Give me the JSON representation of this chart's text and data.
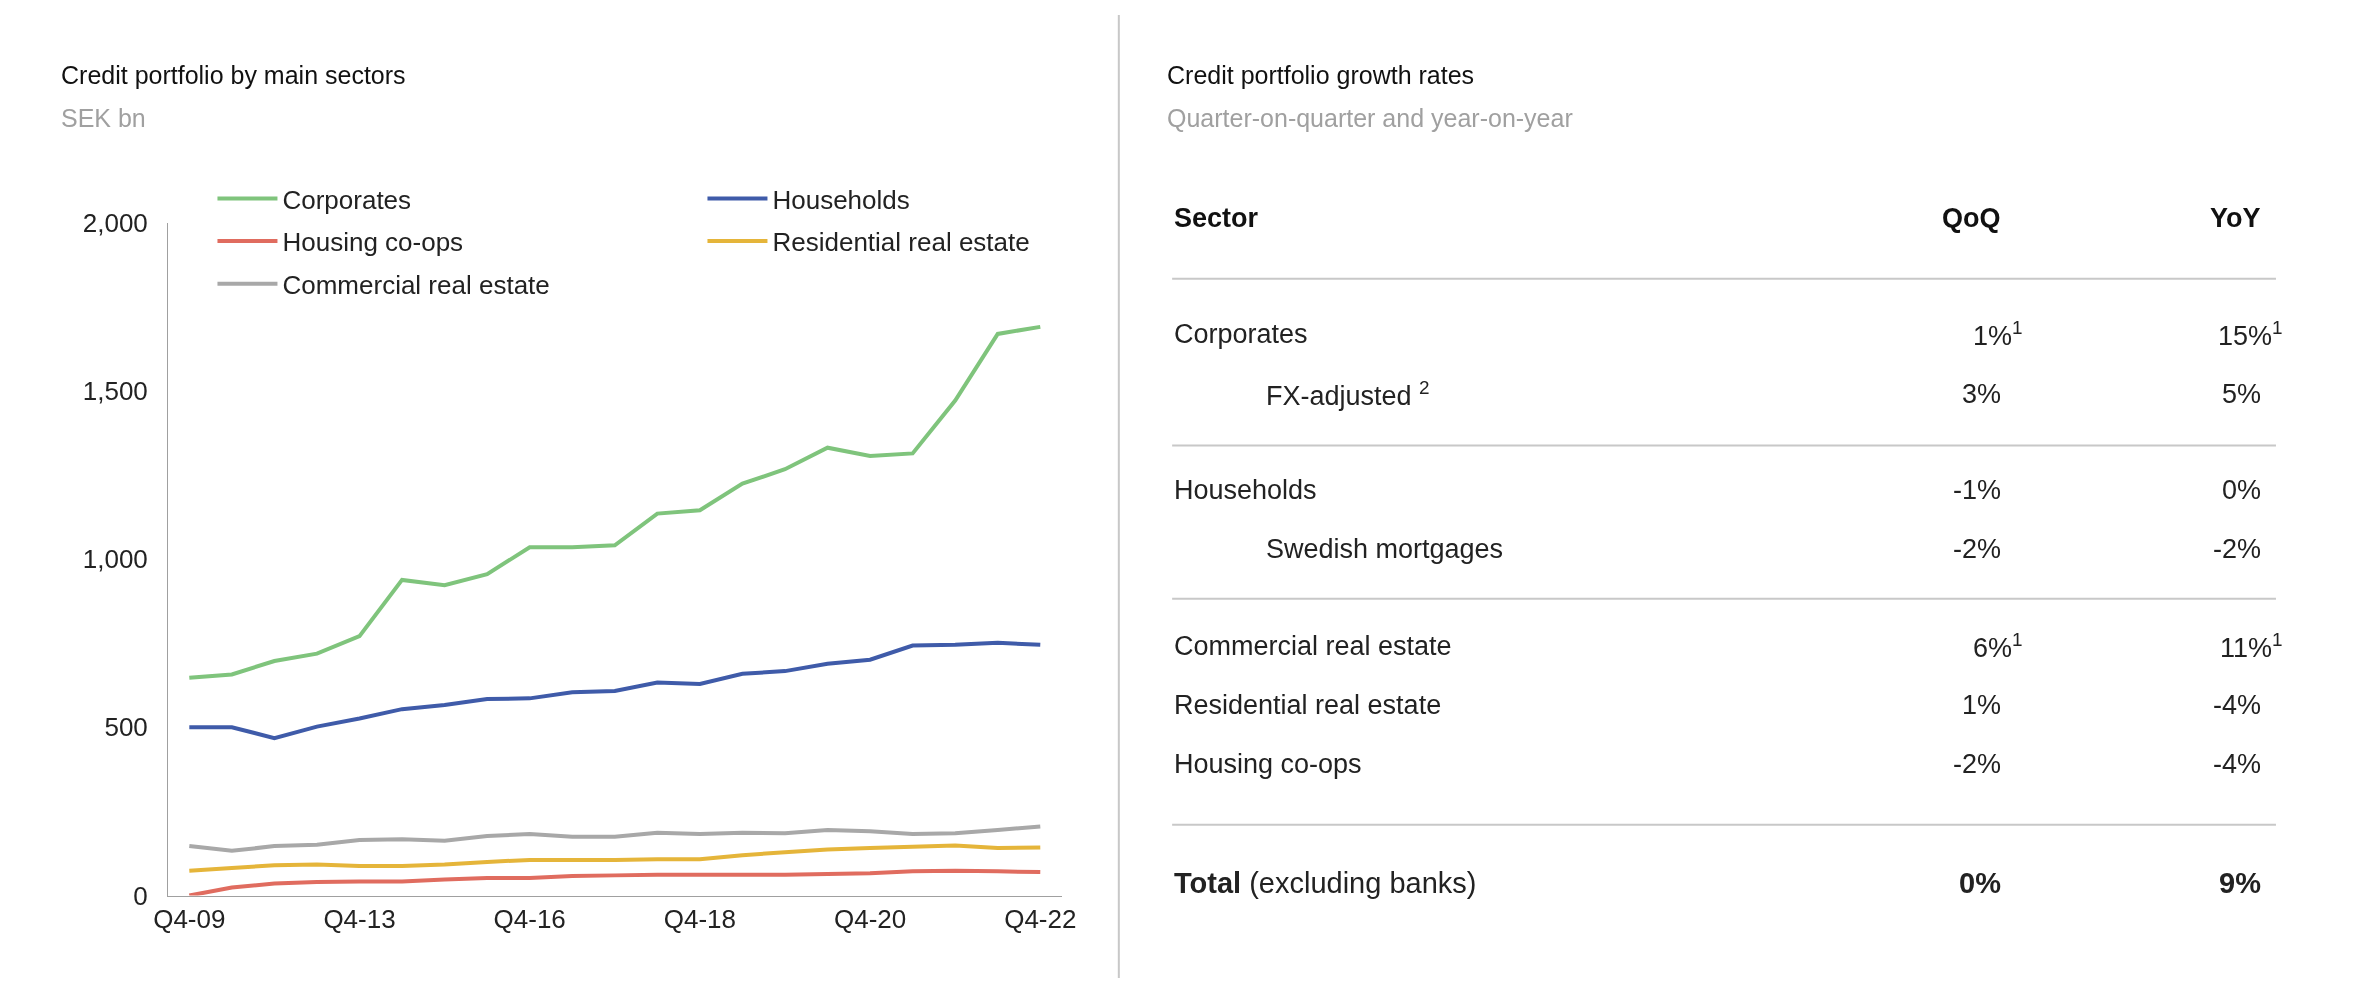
{
  "chart_data": [
    {
      "type": "line",
      "title": "Credit portfolio by main sectors",
      "subtitle": "SEK bn",
      "categories": [
        "Q4-09",
        null,
        null,
        null,
        "Q4-13",
        null,
        null,
        null,
        "Q4-16",
        null,
        null,
        null,
        "Q4-18",
        null,
        null,
        null,
        "Q4-20",
        null,
        null,
        null,
        "Q4-22"
      ],
      "series": [
        {
          "name": "Corporates",
          "color": "#7fc47c",
          "values": [
            647,
            657,
            697,
            719,
            771,
            938,
            922,
            955,
            1035,
            1035,
            1041,
            1135,
            1145,
            1224,
            1267,
            1331,
            1306,
            1314,
            1471,
            1669,
            1690
          ]
        },
        {
          "name": "Households",
          "color": "#3f5ba9",
          "values": [
            500,
            500,
            468,
            502,
            526,
            554,
            566,
            584,
            586,
            604,
            608,
            633,
            629,
            659,
            667,
            689,
            701,
            743,
            745,
            751,
            745
          ]
        },
        {
          "name": "Housing co-ops",
          "color": "#e06c5f",
          "values": [
            0,
            24,
            36,
            40,
            42,
            42,
            48,
            52,
            52,
            58,
            60,
            62,
            62,
            62,
            62,
            64,
            66,
            72,
            74,
            72,
            70
          ]
        },
        {
          "name": "Residential real estate",
          "color": "#e5b53a",
          "values": [
            74,
            82,
            90,
            92,
            88,
            88,
            92,
            100,
            106,
            106,
            106,
            108,
            108,
            120,
            129,
            137,
            141,
            145,
            149,
            141,
            143
          ]
        },
        {
          "name": "Commercial real estate",
          "color": "#a8a8a8",
          "values": [
            147,
            133,
            147,
            151,
            165,
            167,
            163,
            177,
            183,
            175,
            175,
            187,
            183,
            187,
            185,
            195,
            191,
            183,
            185,
            195,
            205
          ]
        }
      ],
      "ylim": [
        0,
        2000
      ],
      "yticks": [
        0,
        {
          "value": 500,
          "label": "500"
        },
        {
          "value": 1000,
          "label": "1,000"
        },
        {
          "value": 1500,
          "label": "1,500"
        },
        {
          "value": 2000,
          "label": "2,000"
        }
      ],
      "grid": false,
      "legend": "top",
      "marker": "none",
      "line_style": "solid"
    },
    {
      "type": "other",
      "title": "Credit portfolio growth rates",
      "subtitle": "Quarter-on-quarter and year-on-year",
      "annotations": [
        "Sector",
        "QoQ",
        "YoY",
        "Corporates",
        "1%$^{1}$",
        "15%$^{1}$",
        "FX-adjusted $^{2}$",
        "3%",
        "5%",
        "Households",
        "-1%",
        "0%",
        "Swedish mortgages",
        "-2%",
        "-2%",
        "Commercial real estate",
        "6%$^{1}$",
        "11%$^{1}$",
        "Residential real estate",
        "1%",
        "-4%",
        "Housing co-ops",
        "-2%",
        "-4%",
        "Total (excluding banks)",
        "0%",
        "9%"
      ]
    }
  ]
}
